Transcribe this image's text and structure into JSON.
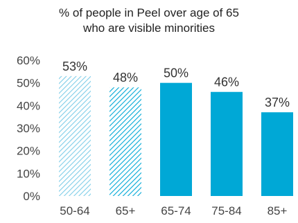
{
  "chart_data": {
    "type": "bar",
    "title_lines": [
      "% of people in Peel over age of 65",
      "who are visible minorities"
    ],
    "categories": [
      "50-64",
      "65+",
      "65-74",
      "75-84",
      "85+"
    ],
    "values": [
      53,
      48,
      50,
      46,
      37
    ],
    "data_labels": [
      "53%",
      "48%",
      "50%",
      "46%",
      "37%"
    ],
    "bar_styles": [
      "light-hatch",
      "hatch",
      "solid",
      "solid",
      "solid"
    ],
    "ylim": [
      0,
      60
    ],
    "yticks": [
      0,
      10,
      20,
      30,
      40,
      50,
      60
    ],
    "ytick_labels": [
      "0%",
      "10%",
      "20%",
      "30%",
      "40%",
      "50%",
      "60%"
    ],
    "grid": false,
    "legend": "none",
    "colors": {
      "bar": "#00A8D6",
      "hatch": "#00A8D6",
      "light_hatch": "#7FCDE8",
      "text": "#444444"
    }
  }
}
